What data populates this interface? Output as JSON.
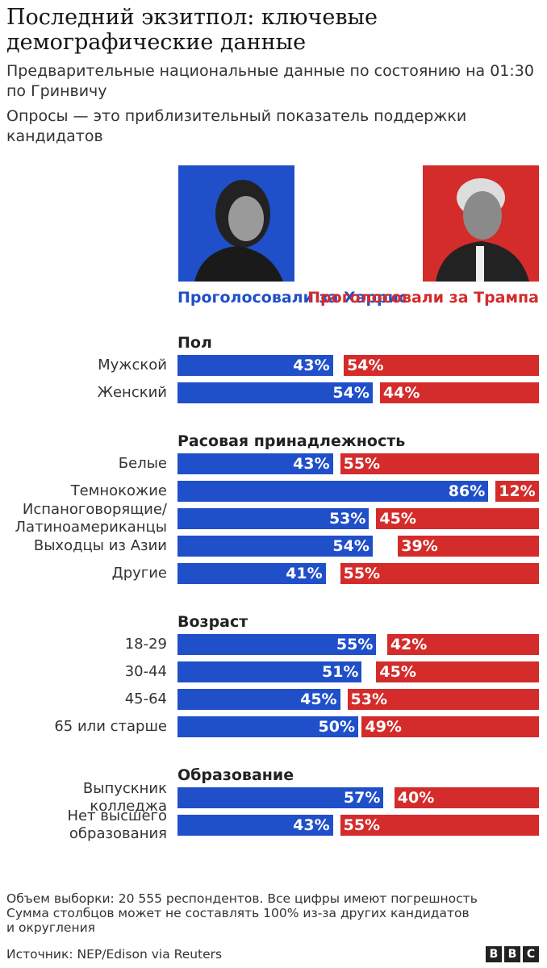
{
  "title": "Последний экзитпол: ключевые демографические данные",
  "subtitle": "Предварительные национальные данные по состоянию на 01:30 по Гринвичу",
  "note": "Опросы — это приблизительный показатель поддержки кандидатов",
  "legend": [
    {
      "name": "Проголосовали за Харрис",
      "color": "#1f4fc9"
    },
    {
      "name": "Проголосовали за Трампа",
      "color": "#d42b2b"
    }
  ],
  "chart_data": [
    {
      "type": "bar",
      "title": "Пол",
      "categories": [
        "Мужской",
        "Женский"
      ],
      "xlim": [
        0,
        100
      ],
      "series": [
        {
          "color": "#1f4fc9",
          "values": [
            43,
            54
          ],
          "value_labels": [
            "43%",
            "54%"
          ]
        },
        {
          "color": "#d42b2b",
          "values": [
            54,
            44
          ],
          "value_labels": [
            "54%",
            "44%"
          ]
        }
      ]
    },
    {
      "type": "bar",
      "title": "Расовая принадлежность",
      "categories": [
        "Белые",
        "Темнокожие",
        "Испаноговорящие/\nЛатиноамериканцы",
        "Выходцы из Азии",
        "Другие"
      ],
      "xlim": [
        0,
        100
      ],
      "series": [
        {
          "color": "#1f4fc9",
          "values": [
            43,
            86,
            53,
            54,
            41
          ],
          "value_labels": [
            "43%",
            "86%",
            "53%",
            "54%",
            "41%"
          ]
        },
        {
          "color": "#d42b2b",
          "values": [
            55,
            12,
            45,
            39,
            55
          ],
          "value_labels": [
            "55%",
            "12%",
            "45%",
            "39%",
            "55%"
          ]
        }
      ]
    },
    {
      "type": "bar",
      "title": "Возраст",
      "categories": [
        "18-29",
        "30-44",
        "45-64",
        "65 или старше"
      ],
      "xlim": [
        0,
        100
      ],
      "series": [
        {
          "color": "#1f4fc9",
          "values": [
            55,
            51,
            45,
            50
          ],
          "value_labels": [
            "55%",
            "51%",
            "45%",
            "50%"
          ]
        },
        {
          "color": "#d42b2b",
          "values": [
            42,
            45,
            53,
            49
          ],
          "value_labels": [
            "42%",
            "45%",
            "53%",
            "49%"
          ]
        }
      ]
    },
    {
      "type": "bar",
      "title": "Образование",
      "categories": [
        "Выпускник\nколледжа",
        "Нет высшего\nобразования"
      ],
      "xlim": [
        0,
        100
      ],
      "series": [
        {
          "color": "#1f4fc9",
          "values": [
            57,
            43
          ],
          "value_labels": [
            "57%",
            "43%"
          ]
        },
        {
          "color": "#d42b2b",
          "values": [
            40,
            55
          ],
          "value_labels": [
            "40%",
            "55%"
          ]
        }
      ]
    }
  ],
  "footnote": "Объем выборки: 20 555 респондентов. Все цифры имеют погрешность\nСумма столбцов может не составлять 100% из-за других кандидатов\nи округления",
  "source": "Источник: NEP/Edison via Reuters",
  "logo": [
    "B",
    "B",
    "C"
  ]
}
